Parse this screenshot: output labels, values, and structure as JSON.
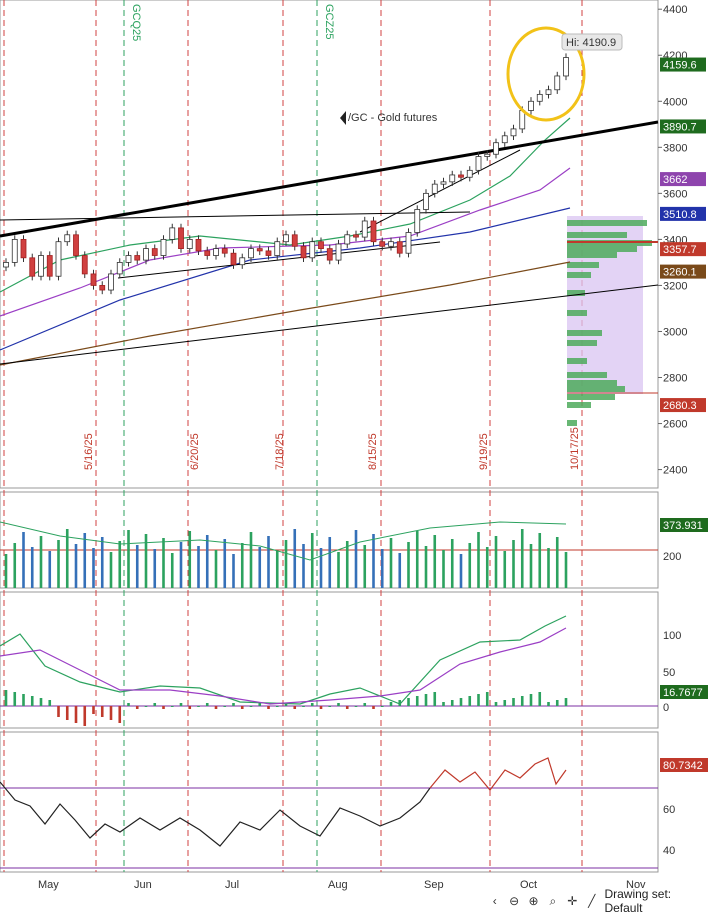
{
  "chart_data": {
    "type": "candlestick",
    "symbol_label": "/GC - Gold futures",
    "hi_label": "Hi: 4190.9",
    "price_axis": {
      "ticks": [
        4400,
        4200,
        4000,
        3800,
        3600,
        3400,
        3200,
        3000,
        2800,
        2600,
        2400
      ],
      "range": [
        2320,
        4440
      ]
    },
    "price_tags": [
      {
        "value": 4159.6,
        "label": "4159.6",
        "color": "#1e6b1e"
      },
      {
        "value": 3890.7,
        "label": "3890.7",
        "color": "#1e6b1e"
      },
      {
        "value": 3662,
        "label": "3662",
        "color": "#8e44ad"
      },
      {
        "value": 3510.8,
        "label": "3510.8",
        "color": "#2233aa"
      },
      {
        "value": 3357.7,
        "label": "3357.7",
        "color": "#c0392b"
      },
      {
        "value": 3260.1,
        "label": "3260.1",
        "color": "#7a4a1a"
      },
      {
        "value": 2680.3,
        "label": "2680.3",
        "color": "#c0392b"
      }
    ],
    "vertical_date_markers": [
      "5/16/25",
      "6/20/25",
      "7/18/25",
      "8/15/25",
      "9/19/25",
      "10/17/25"
    ],
    "contract_markers": [
      "GCQ25",
      "GCZ25"
    ],
    "month_labels": [
      "May",
      "Jun",
      "Jul",
      "Aug",
      "Sep",
      "Oct",
      "Nov"
    ],
    "close_series_approx": [
      3300,
      3400,
      3320,
      3240,
      3330,
      3240,
      3390,
      3420,
      3330,
      3250,
      3200,
      3180,
      3250,
      3300,
      3330,
      3310,
      3360,
      3330,
      3400,
      3450,
      3360,
      3400,
      3350,
      3330,
      3360,
      3340,
      3290,
      3320,
      3360,
      3350,
      3330,
      3390,
      3420,
      3370,
      3320,
      3390,
      3360,
      3310,
      3380,
      3420,
      3410,
      3480,
      3390,
      3370,
      3390,
      3340,
      3430,
      3530,
      3600,
      3640,
      3650,
      3680,
      3670,
      3700,
      3760,
      3770,
      3820,
      3850,
      3880,
      3960,
      4000,
      4030,
      4050,
      4110,
      4190
    ],
    "volume_panel": {
      "value_tag": "373.931",
      "ticks": [
        200
      ],
      "reference_line": 200
    },
    "indicator_panel": {
      "value_tag": "16.7677",
      "ticks": [
        100,
        50,
        0
      ]
    },
    "rsi_panel": {
      "value_tag": "80.7342",
      "ticks": [
        60,
        40
      ],
      "overbought_line": 70
    },
    "annotation": "yellow circle around recent high"
  },
  "toolbar": {
    "drawing_set_label": "Drawing set: Default"
  }
}
